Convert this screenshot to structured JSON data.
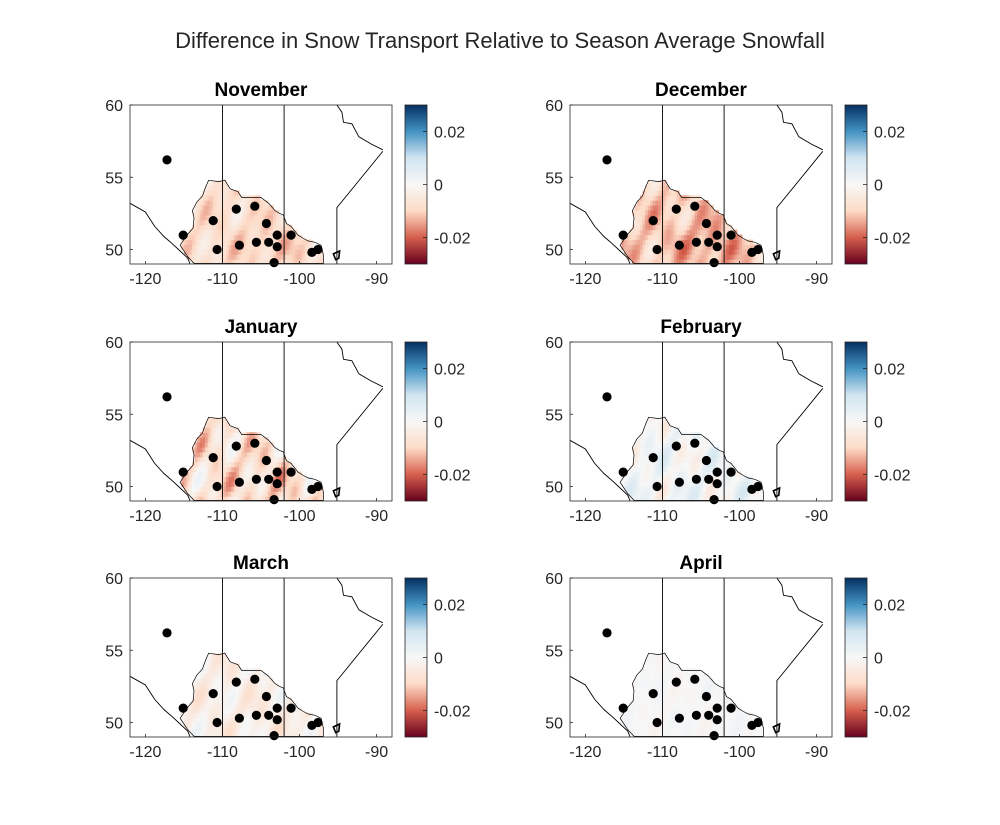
{
  "figure_title": "Difference in Snow Transport Relative to Season Average Snowfall",
  "colormap": {
    "name": "red-white-blue",
    "stops": [
      "#67001f",
      "#d6604d",
      "#fddbc7",
      "#f7f7f7",
      "#d1e5f0",
      "#4393c3",
      "#053061"
    ],
    "clim": [
      -0.03,
      0.03
    ]
  },
  "colors": {
    "station_marker": "#000000",
    "boundary_lines": "#000000",
    "axes": "#262626"
  },
  "chart_data": [
    {
      "type": "heatmap",
      "title": "November",
      "xlim": [
        -122,
        -88
      ],
      "ylim": [
        49,
        60
      ],
      "xticks": [
        -120,
        -110,
        -100,
        -90
      ],
      "xtick_labels": [
        "-120",
        "-110",
        "-100",
        "-90"
      ],
      "yticks": [
        50,
        55,
        60
      ],
      "ytick_labels": [
        "50",
        "55",
        "60"
      ],
      "colorbar_ticks": [
        -0.02,
        0,
        0.02
      ],
      "colorbar_tick_labels": [
        "-0.02",
        "0",
        "0.02"
      ],
      "field": {
        "base": -0.008,
        "var": 0.004,
        "seed": 11
      }
    },
    {
      "type": "heatmap",
      "title": "December",
      "xlim": [
        -122,
        -88
      ],
      "ylim": [
        49,
        60
      ],
      "xticks": [
        -120,
        -110,
        -100,
        -90
      ],
      "xtick_labels": [
        "-120",
        "-110",
        "-100",
        "-90"
      ],
      "yticks": [
        50,
        55,
        60
      ],
      "ytick_labels": [
        "50",
        "55",
        "60"
      ],
      "colorbar_ticks": [
        -0.02,
        0,
        0.02
      ],
      "colorbar_tick_labels": [
        "-0.02",
        "0",
        "0.02"
      ],
      "field": {
        "base": -0.011,
        "var": 0.005,
        "seed": 23
      }
    },
    {
      "type": "heatmap",
      "title": "January",
      "xlim": [
        -122,
        -88
      ],
      "ylim": [
        49,
        60
      ],
      "xticks": [
        -120,
        -110,
        -100,
        -90
      ],
      "xtick_labels": [
        "-120",
        "-110",
        "-100",
        "-90"
      ],
      "yticks": [
        50,
        55,
        60
      ],
      "ytick_labels": [
        "50",
        "55",
        "60"
      ],
      "colorbar_ticks": [
        -0.02,
        0,
        0.02
      ],
      "colorbar_tick_labels": [
        "-0.02",
        "0",
        "0.02"
      ],
      "field": {
        "base": -0.007,
        "var": 0.007,
        "seed": 37
      }
    },
    {
      "type": "heatmap",
      "title": "February",
      "xlim": [
        -122,
        -88
      ],
      "ylim": [
        49,
        60
      ],
      "xticks": [
        -120,
        -110,
        -100,
        -90
      ],
      "xtick_labels": [
        "-120",
        "-110",
        "-100",
        "-90"
      ],
      "yticks": [
        50,
        55,
        60
      ],
      "ytick_labels": [
        "50",
        "55",
        "60"
      ],
      "colorbar_ticks": [
        -0.02,
        0,
        0.02
      ],
      "colorbar_tick_labels": [
        "-0.02",
        "0",
        "0.02"
      ],
      "field": {
        "base": 0.001,
        "var": 0.005,
        "seed": 41
      }
    },
    {
      "type": "heatmap",
      "title": "March",
      "xlim": [
        -122,
        -88
      ],
      "ylim": [
        49,
        60
      ],
      "xticks": [
        -120,
        -110,
        -100,
        -90
      ],
      "xtick_labels": [
        "-120",
        "-110",
        "-100",
        "-90"
      ],
      "yticks": [
        50,
        55,
        60
      ],
      "ytick_labels": [
        "50",
        "55",
        "60"
      ],
      "colorbar_ticks": [
        -0.02,
        0,
        0.02
      ],
      "colorbar_tick_labels": [
        "-0.02",
        "0",
        "0.02"
      ],
      "field": {
        "base": -0.003,
        "var": 0.004,
        "seed": 53
      }
    },
    {
      "type": "heatmap",
      "title": "April",
      "xlim": [
        -122,
        -88
      ],
      "ylim": [
        49,
        60
      ],
      "xticks": [
        -120,
        -110,
        -100,
        -90
      ],
      "xtick_labels": [
        "-120",
        "-110",
        "-100",
        "-90"
      ],
      "yticks": [
        50,
        55,
        60
      ],
      "ytick_labels": [
        "50",
        "55",
        "60"
      ],
      "colorbar_ticks": [
        -0.02,
        0,
        0.02
      ],
      "colorbar_tick_labels": [
        "-0.02",
        "0",
        "0.02"
      ],
      "field": {
        "base": 0.0,
        "var": 0.0015,
        "seed": 67
      }
    }
  ],
  "stations": [
    {
      "lon": -117.2,
      "lat": 56.2
    },
    {
      "lon": -115.1,
      "lat": 51.0
    },
    {
      "lon": -111.2,
      "lat": 52.0
    },
    {
      "lon": -110.7,
      "lat": 50.0
    },
    {
      "lon": -108.2,
      "lat": 52.8
    },
    {
      "lon": -107.8,
      "lat": 50.3
    },
    {
      "lon": -105.8,
      "lat": 53.0
    },
    {
      "lon": -105.6,
      "lat": 50.5
    },
    {
      "lon": -104.3,
      "lat": 51.8
    },
    {
      "lon": -104.0,
      "lat": 50.5
    },
    {
      "lon": -103.3,
      "lat": 49.1
    },
    {
      "lon": -102.9,
      "lat": 51.0
    },
    {
      "lon": -102.9,
      "lat": 50.2
    },
    {
      "lon": -101.1,
      "lat": 51.0
    },
    {
      "lon": -98.4,
      "lat": 49.8
    },
    {
      "lon": -97.6,
      "lat": 50.0
    }
  ],
  "boundaries": {
    "borders": [
      [
        [
          -110.0,
          49.0
        ],
        [
          -110.0,
          60.0
        ]
      ],
      [
        [
          -102.0,
          49.0
        ],
        [
          -102.0,
          60.0
        ]
      ],
      [
        [
          -95.15,
          49.0
        ],
        [
          -95.15,
          52.9
        ],
        [
          -89.2,
          56.8
        ]
      ],
      [
        [
          -95.15,
          60.0
        ],
        [
          -94.5,
          59.5
        ],
        [
          -94.3,
          58.8
        ],
        [
          -93.2,
          58.7
        ],
        [
          -92.3,
          57.8
        ],
        [
          -90.7,
          57.3
        ],
        [
          -89.2,
          56.9
        ]
      ],
      [
        [
          -122.0,
          53.2
        ],
        [
          -120.0,
          52.6
        ],
        [
          -118.8,
          51.6
        ],
        [
          -117.6,
          50.9
        ],
        [
          -116.5,
          50.4
        ],
        [
          -115.5,
          49.9
        ],
        [
          -114.5,
          49.4
        ],
        [
          -114.2,
          49.0
        ]
      ]
    ],
    "domain_outline": [
      [
        -112.2,
        54.3
      ],
      [
        -111.8,
        54.8
      ],
      [
        -110.5,
        54.7
      ],
      [
        -109.7,
        54.8
      ],
      [
        -109.0,
        54.2
      ],
      [
        -108.0,
        54.0
      ],
      [
        -107.5,
        53.6
      ],
      [
        -106.3,
        53.6
      ],
      [
        -105.0,
        53.6
      ],
      [
        -104.0,
        53.2
      ],
      [
        -103.2,
        52.7
      ],
      [
        -102.6,
        52.5
      ],
      [
        -102.1,
        52.4
      ],
      [
        -101.7,
        51.8
      ],
      [
        -101.1,
        51.6
      ],
      [
        -100.2,
        51.0
      ],
      [
        -99.6,
        50.8
      ],
      [
        -98.9,
        50.6
      ],
      [
        -98.0,
        50.5
      ],
      [
        -97.2,
        50.3
      ],
      [
        -96.9,
        49.6
      ],
      [
        -96.9,
        49.05
      ],
      [
        -113.7,
        49.05
      ],
      [
        -114.5,
        49.5
      ],
      [
        -115.5,
        50.3
      ],
      [
        -114.6,
        51.0
      ],
      [
        -113.8,
        51.5
      ],
      [
        -113.7,
        52.2
      ],
      [
        -113.9,
        52.7
      ],
      [
        -113.3,
        53.3
      ],
      [
        -112.6,
        53.7
      ]
    ],
    "lake_outline": [
      [
        -95.6,
        49.7
      ],
      [
        -94.8,
        49.9
      ],
      [
        -94.9,
        49.4
      ],
      [
        -95.3,
        49.3
      ]
    ]
  }
}
